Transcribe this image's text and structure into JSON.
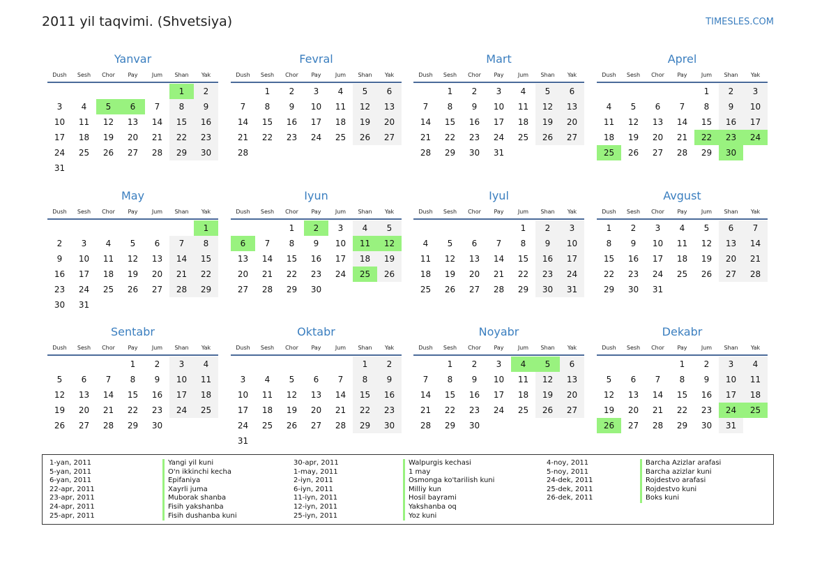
{
  "header": {
    "title": "2011 yil taqvimi. (Shvetsiya)",
    "site": "TIMESLES.COM"
  },
  "year": 2011,
  "weekdays": [
    "Dush",
    "Sesh",
    "Chor",
    "Pay",
    "Jum",
    "Shan",
    "Yak"
  ],
  "colors": {
    "accent": "#3a7ebf",
    "holiday": "#99f27f",
    "weekend": "#f2f2f2",
    "rule": "#4a6a99"
  },
  "months": [
    {
      "name": "Yanvar",
      "holidays": [
        1,
        5,
        6
      ]
    },
    {
      "name": "Fevral",
      "holidays": []
    },
    {
      "name": "Mart",
      "holidays": []
    },
    {
      "name": "Aprel",
      "holidays": [
        22,
        23,
        24,
        25,
        30
      ]
    },
    {
      "name": "May",
      "holidays": [
        1
      ]
    },
    {
      "name": "Iyun",
      "holidays": [
        2,
        6,
        11,
        12,
        25
      ]
    },
    {
      "name": "Iyul",
      "holidays": []
    },
    {
      "name": "Avgust",
      "holidays": []
    },
    {
      "name": "Sentabr",
      "holidays": []
    },
    {
      "name": "Oktabr",
      "holidays": []
    },
    {
      "name": "Noyabr",
      "holidays": [
        4,
        5
      ]
    },
    {
      "name": "Dekabr",
      "holidays": [
        24,
        25,
        26
      ]
    }
  ],
  "legend": [
    {
      "dates": [
        "1-yan, 2011",
        "5-yan, 2011",
        "6-yan, 2011",
        "22-apr, 2011",
        "23-apr, 2011",
        "24-apr, 2011",
        "25-apr, 2011"
      ],
      "names": [
        "Yangi yil kuni",
        "O'n ikkinchi kecha",
        "Epifaniya",
        "Xayrli juma",
        "Muborak shanba",
        "Fisih yakshanba",
        "Fisih dushanba kuni"
      ]
    },
    {
      "dates": [
        "30-apr, 2011",
        "1-may, 2011",
        "2-iyn, 2011",
        "6-iyn, 2011",
        "11-iyn, 2011",
        "12-iyn, 2011",
        "25-iyn, 2011"
      ],
      "names": [
        "Walpurgis kechasi",
        "1 may",
        "Osmonga ko'tarilish kuni",
        "Milliy kun",
        "Hosil bayrami",
        "Yakshanba oq",
        "Yoz kuni"
      ]
    },
    {
      "dates": [
        "4-noy, 2011",
        "5-noy, 2011",
        "24-dek, 2011",
        "25-dek, 2011",
        "26-dek, 2011"
      ],
      "names": [
        "Barcha Azizlar arafasi",
        "Barcha azizlar kuni",
        "Rojdestvo arafasi",
        "Rojdestvo kuni",
        "Boks kuni"
      ]
    }
  ]
}
